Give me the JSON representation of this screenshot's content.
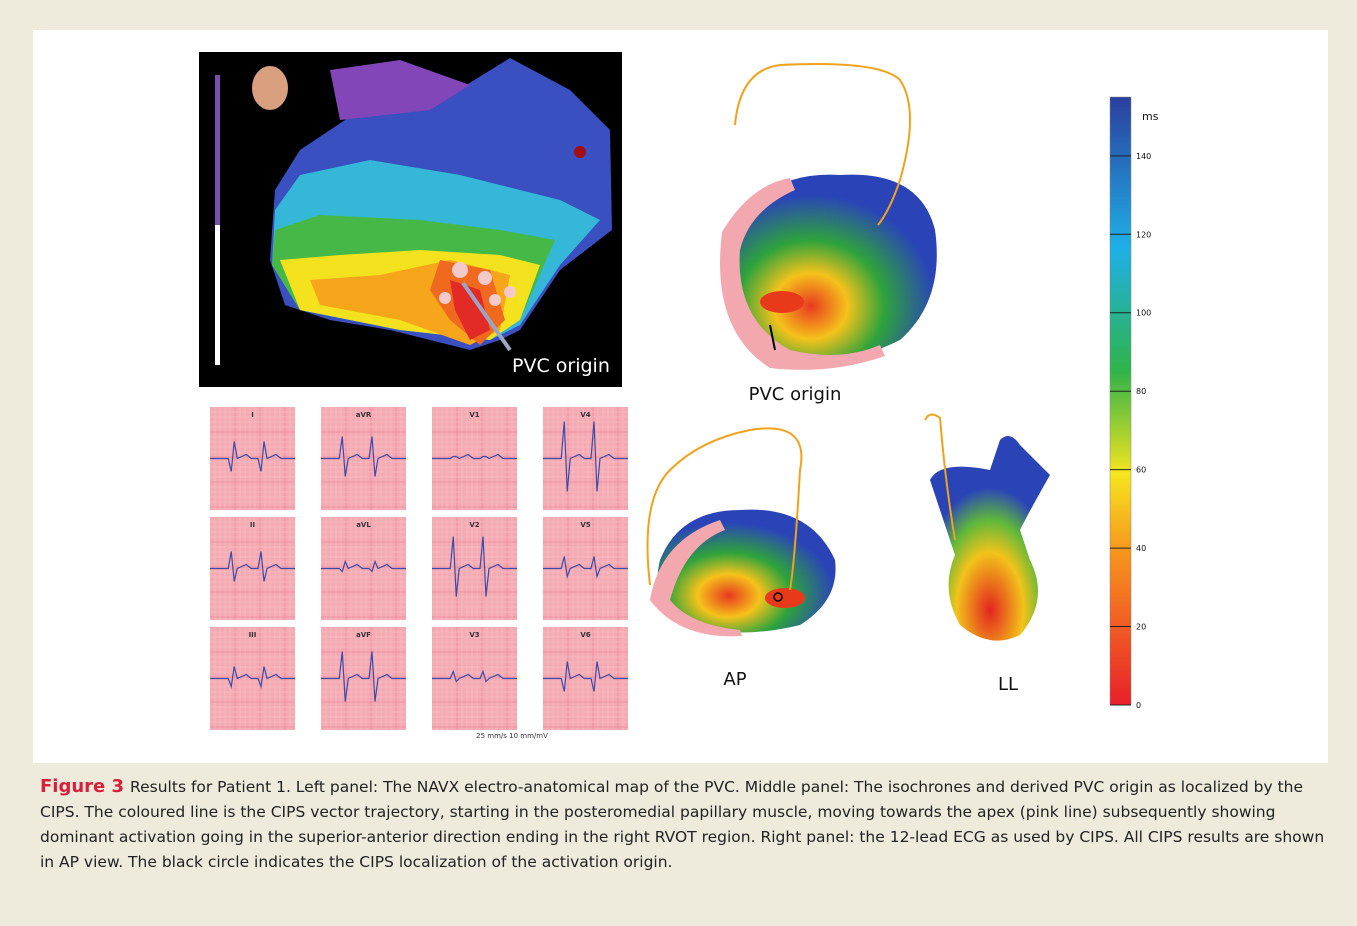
{
  "figure": {
    "map_label": "PVC origin",
    "ecg_leads": [
      "I",
      "aVR",
      "V1",
      "V4",
      "II",
      "aVL",
      "V2",
      "V5",
      "III",
      "aVF",
      "V3",
      "V6"
    ],
    "ecg_scale": "25 mm/s  10 mm/mV",
    "isochrone_labels": {
      "main": "PVC origin",
      "ap": "AP",
      "ll": "LL"
    },
    "colorbar": {
      "unit": "ms",
      "lim": [
        0,
        155
      ],
      "ticks": [
        0,
        20,
        40,
        60,
        80,
        100,
        120,
        140
      ]
    }
  },
  "caption": {
    "label": "Figure 3",
    "text": "Results for Patient 1. Left panel: The NAVX electro-anatomical map of the PVC. Middle panel: The isochrones and derived PVC origin as localized by the CIPS. The coloured line is the CIPS vector trajectory, starting in the posteromedial papillary muscle, moving towards the apex (pink line) subsequently showing dominant activation going in the superior-anterior direction ending in the right RVOT region. Right panel: the 12-lead ECG as used by CIPS. All CIPS results are shown in AP view. The black circle indicates the CIPS localization of the activation origin."
  }
}
